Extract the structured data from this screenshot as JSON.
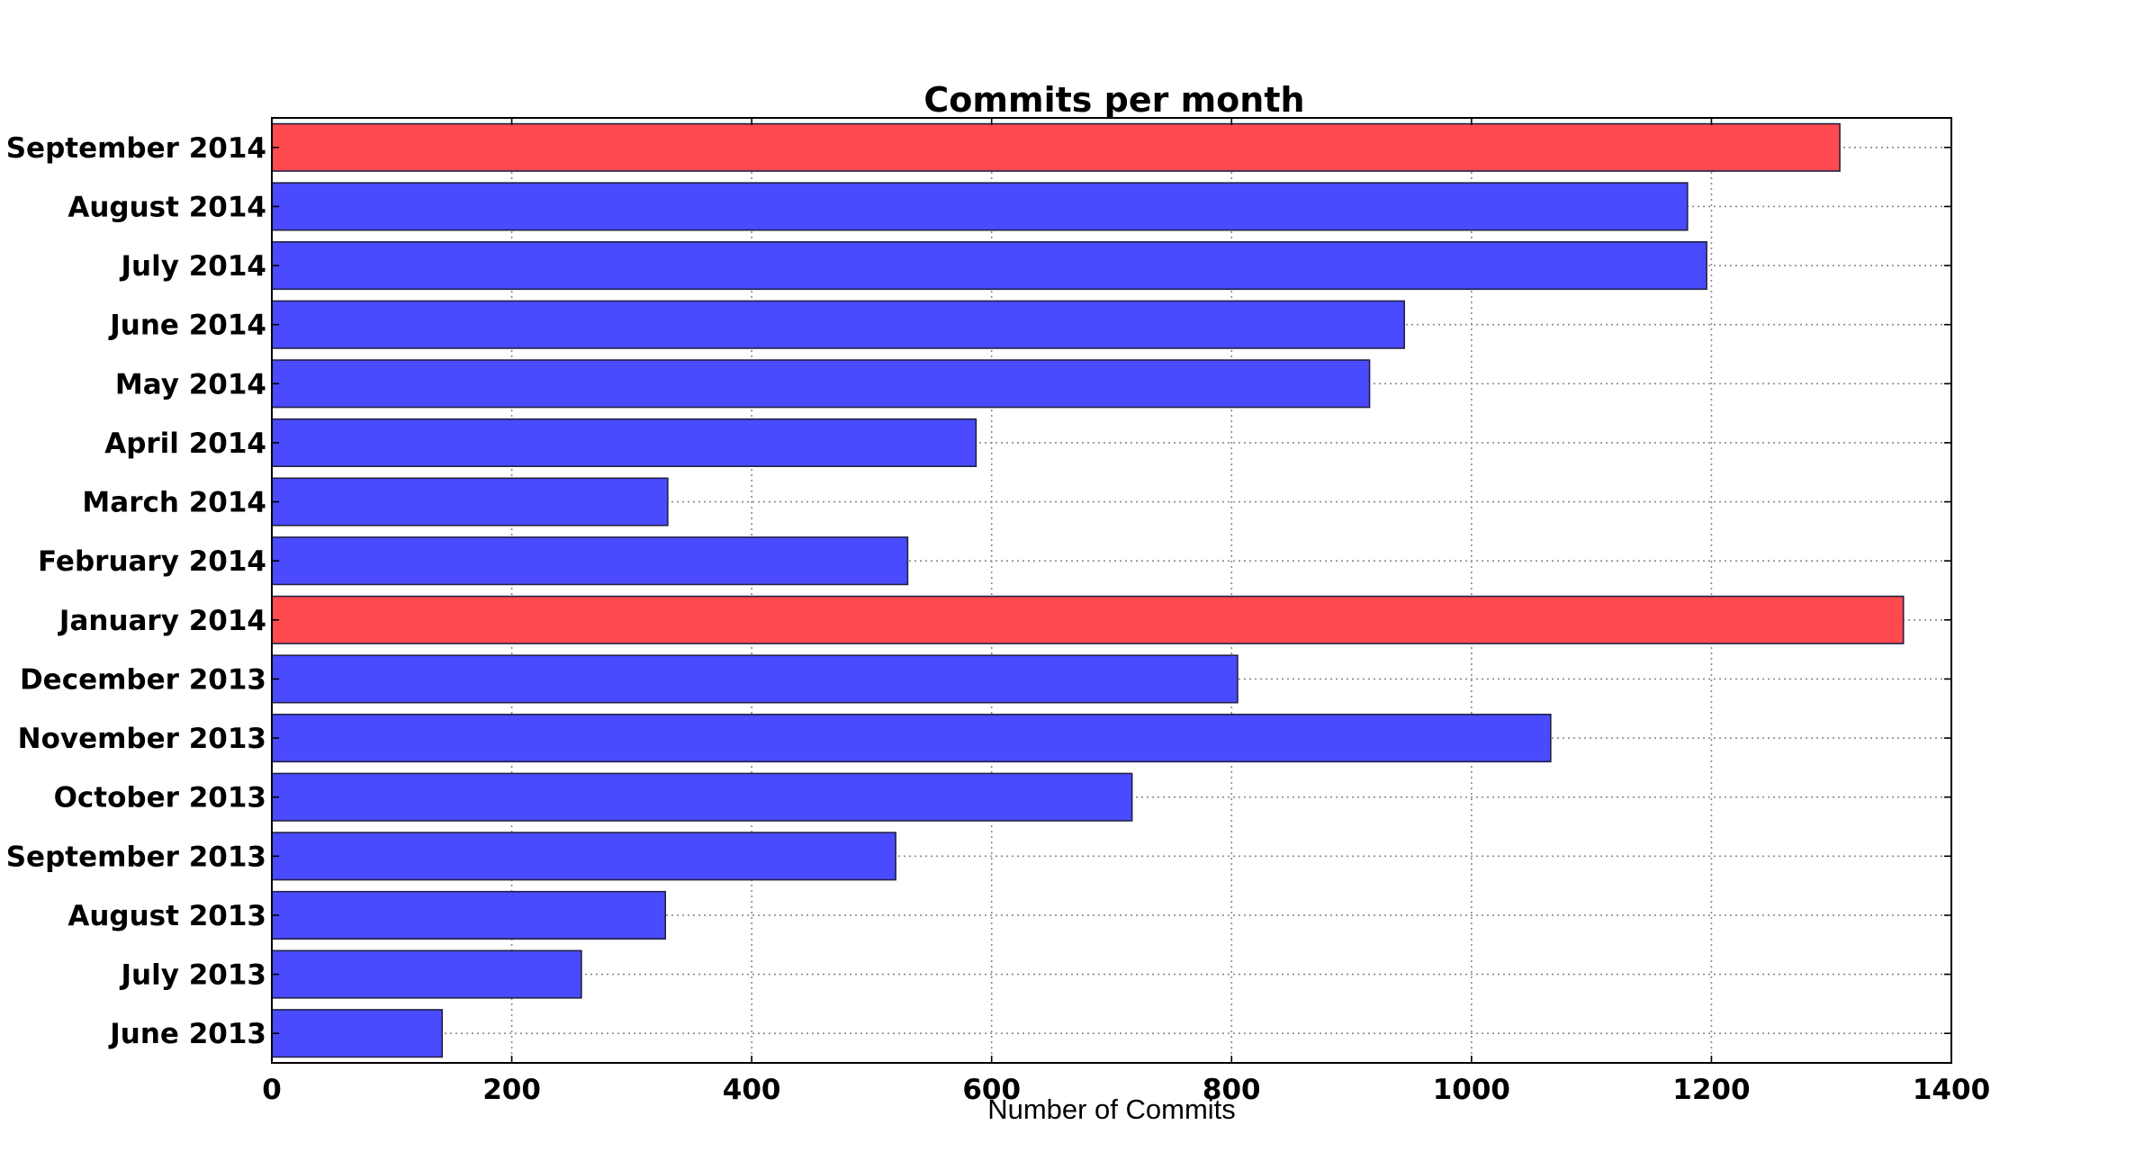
{
  "chart_data": {
    "type": "bar",
    "orientation": "horizontal",
    "title": "Commits per month",
    "xlabel": "Number of Commits",
    "ylabel": "",
    "xlim": [
      0,
      1400
    ],
    "xticks": [
      0,
      200,
      400,
      600,
      800,
      1000,
      1200,
      1400
    ],
    "grid": true,
    "categories": [
      "September 2014",
      "August 2014",
      "July 2014",
      "June 2014",
      "May 2014",
      "April 2014",
      "March 2014",
      "February 2014",
      "January 2014",
      "December 2013",
      "November 2013",
      "October 2013",
      "September 2013",
      "August 2013",
      "July 2013",
      "June 2013"
    ],
    "values": [
      1307,
      1180,
      1196,
      944,
      915,
      587,
      330,
      530,
      1360,
      805,
      1066,
      717,
      520,
      328,
      258,
      142
    ],
    "highlighted": [
      "September 2014",
      "January 2014"
    ],
    "colors": {
      "bar": "#4a4aff",
      "highlight": "#ff4a4f"
    }
  }
}
